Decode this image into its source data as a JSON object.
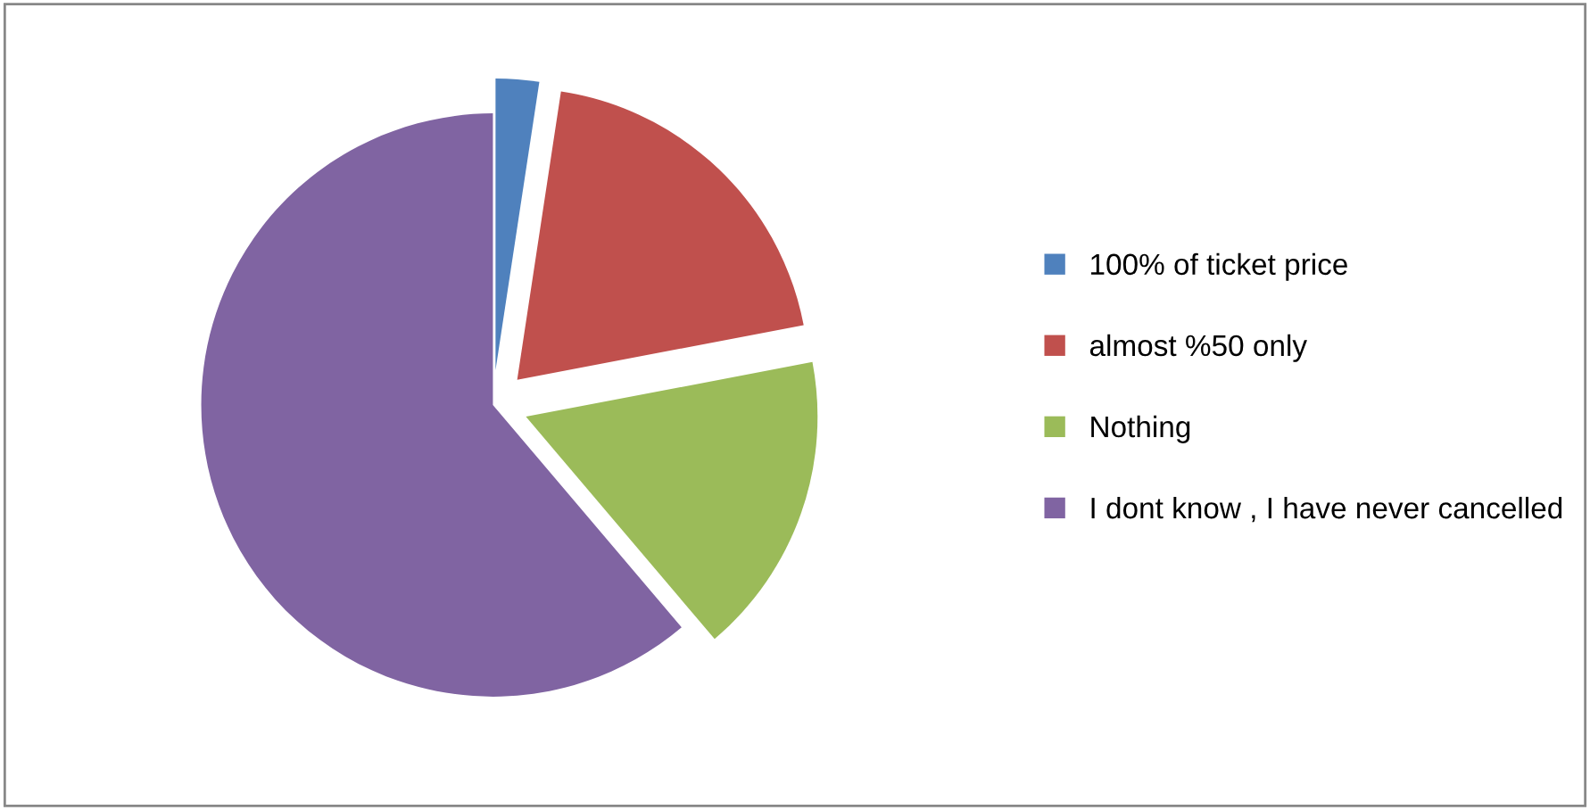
{
  "chart_data": {
    "type": "pie",
    "categories": [
      "100% of ticket price",
      "almost %50 only",
      "Nothing",
      "I dont know , I have never cancelled"
    ],
    "values": [
      2.4,
      19.6,
      16.8,
      61.2
    ],
    "colors": [
      "#4f81bd",
      "#c0504d",
      "#9bbb59",
      "#8064a2"
    ],
    "legend": "right"
  }
}
